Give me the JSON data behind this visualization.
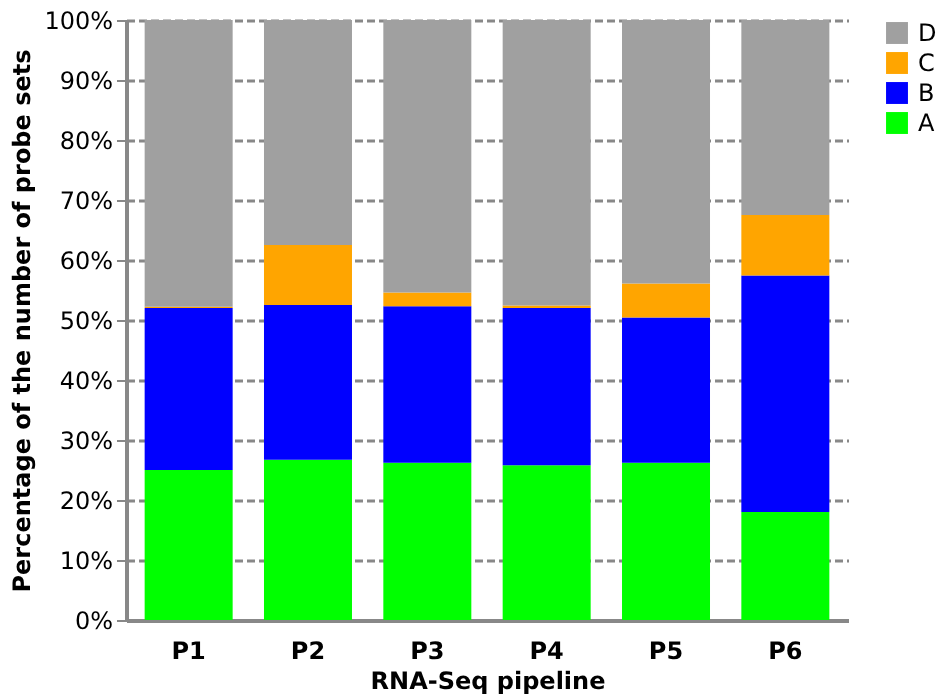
{
  "chart_data": {
    "type": "bar",
    "stacked": true,
    "xlabel": "RNA-Seq pipeline",
    "ylabel": "Percentage of the number of probe sets",
    "categories": [
      "P1",
      "P2",
      "P3",
      "P4",
      "P5",
      "P6"
    ],
    "series": [
      {
        "name": "A",
        "color": "#00ff00",
        "values": [
          25.0,
          26.7,
          26.2,
          25.8,
          26.2,
          18.0
        ]
      },
      {
        "name": "B",
        "color": "#0000ff",
        "values": [
          27.0,
          25.8,
          26.1,
          26.2,
          24.2,
          39.4
        ]
      },
      {
        "name": "C",
        "color": "#ffa500",
        "values": [
          0.2,
          10.0,
          2.3,
          0.4,
          5.7,
          10.1
        ]
      },
      {
        "name": "D",
        "color": "#a0a0a0",
        "values": [
          47.8,
          37.5,
          45.4,
          47.6,
          43.9,
          32.5
        ]
      }
    ],
    "ylim": [
      0,
      100
    ],
    "yticks": [
      {
        "value": 0,
        "label": "0%"
      },
      {
        "value": 10,
        "label": "10%"
      },
      {
        "value": 20,
        "label": "20%"
      },
      {
        "value": 30,
        "label": "30%"
      },
      {
        "value": 40,
        "label": "40%"
      },
      {
        "value": 50,
        "label": "50%"
      },
      {
        "value": 60,
        "label": "60%"
      },
      {
        "value": 70,
        "label": "70%"
      },
      {
        "value": 80,
        "label": "80%"
      },
      {
        "value": 90,
        "label": "90%"
      },
      {
        "value": 100,
        "label": "100%"
      }
    ],
    "grid": "y",
    "legend": "right"
  }
}
